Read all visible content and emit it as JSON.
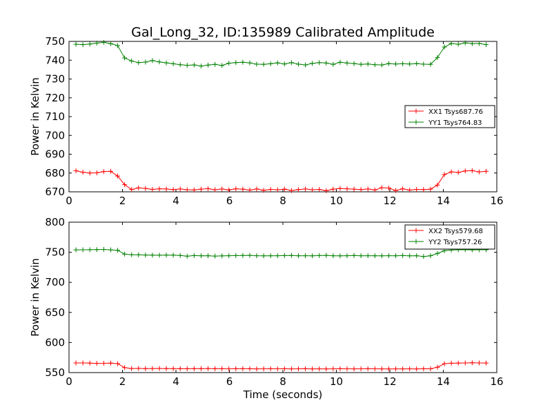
{
  "title": "Gal_Long_32, ID:135989 Calibrated Amplitude",
  "colors": {
    "red": "#ff0000",
    "green": "#008000"
  },
  "chart_data": [
    {
      "type": "line",
      "title": "Gal_Long_32, ID:135989 Calibrated Amplitude",
      "xlabel": "",
      "ylabel": "Power in Kelvin",
      "xlim": [
        0,
        16
      ],
      "ylim": [
        670,
        750
      ],
      "xticks": [
        "0",
        "2",
        "4",
        "6",
        "8",
        "10",
        "12",
        "14",
        "16"
      ],
      "yticks": [
        "670",
        "680",
        "690",
        "700",
        "710",
        "720",
        "730",
        "740",
        "750"
      ],
      "legend_position": "center-right",
      "x": [
        0.26,
        0.52,
        0.78,
        1.04,
        1.3,
        1.56,
        1.82,
        2.08,
        2.34,
        2.6,
        2.86,
        3.12,
        3.38,
        3.64,
        3.9,
        4.16,
        4.42,
        4.68,
        4.94,
        5.2,
        5.46,
        5.72,
        5.98,
        6.24,
        6.5,
        6.76,
        7.02,
        7.28,
        7.54,
        7.8,
        8.06,
        8.32,
        8.58,
        8.84,
        9.1,
        9.36,
        9.62,
        9.88,
        10.14,
        10.4,
        10.66,
        10.92,
        11.18,
        11.44,
        11.7,
        11.96,
        12.22,
        12.48,
        12.74,
        13.0,
        13.26,
        13.52,
        13.78,
        14.04,
        14.3,
        14.56,
        14.82,
        15.08,
        15.34,
        15.6
      ],
      "series": [
        {
          "name": "XX1 Tsys687.76",
          "color": "#ff0000",
          "values": [
            681.2,
            680.4,
            680.0,
            680.1,
            680.8,
            680.9,
            678.4,
            673.8,
            671.2,
            672.1,
            671.8,
            671.3,
            671.6,
            671.5,
            671.2,
            671.5,
            671.1,
            671.0,
            671.4,
            671.7,
            671.1,
            671.5,
            671.0,
            671.6,
            671.4,
            670.9,
            671.5,
            670.8,
            671.3,
            671.1,
            671.4,
            670.7,
            671.2,
            671.5,
            671.1,
            671.3,
            670.6,
            671.4,
            671.8,
            671.6,
            671.4,
            671.2,
            671.5,
            671.0,
            672.2,
            672.0,
            670.7,
            671.6,
            670.9,
            671.3,
            671.2,
            671.4,
            673.6,
            679.2,
            680.6,
            680.3,
            681.1,
            681.3,
            680.6,
            680.9
          ]
        },
        {
          "name": "YY1 Tsys764.83",
          "color": "#008000",
          "values": [
            748.5,
            748.3,
            748.6,
            749.1,
            749.5,
            748.8,
            747.8,
            741.2,
            739.6,
            738.7,
            739.0,
            739.8,
            739.1,
            738.6,
            738.1,
            737.6,
            737.3,
            737.5,
            736.9,
            737.4,
            737.8,
            737.2,
            738.4,
            738.7,
            738.9,
            738.6,
            737.9,
            737.8,
            738.1,
            738.6,
            738.0,
            738.7,
            737.9,
            737.5,
            738.3,
            738.7,
            738.5,
            737.8,
            738.9,
            738.5,
            738.2,
            737.8,
            738.0,
            737.6,
            737.5,
            738.2,
            738.0,
            738.1,
            738.0,
            738.2,
            737.9,
            737.8,
            741.4,
            747.0,
            748.9,
            748.5,
            749.2,
            748.8,
            748.9,
            748.3
          ]
        }
      ]
    },
    {
      "type": "line",
      "title": "",
      "xlabel": "Time (seconds)",
      "ylabel": "Power in Kelvin",
      "xlim": [
        0,
        16
      ],
      "ylim": [
        550,
        800
      ],
      "xticks": [
        "0",
        "2",
        "4",
        "6",
        "8",
        "10",
        "12",
        "14",
        "16"
      ],
      "yticks": [
        "550",
        "600",
        "650",
        "700",
        "750",
        "800"
      ],
      "legend_position": "top-right",
      "x": [
        0.26,
        0.52,
        0.78,
        1.04,
        1.3,
        1.56,
        1.82,
        2.08,
        2.34,
        2.6,
        2.86,
        3.12,
        3.38,
        3.64,
        3.9,
        4.16,
        4.42,
        4.68,
        4.94,
        5.2,
        5.46,
        5.72,
        5.98,
        6.24,
        6.5,
        6.76,
        7.02,
        7.28,
        7.54,
        7.8,
        8.06,
        8.32,
        8.58,
        8.84,
        9.1,
        9.36,
        9.62,
        9.88,
        10.14,
        10.4,
        10.66,
        10.92,
        11.18,
        11.44,
        11.7,
        11.96,
        12.22,
        12.48,
        12.74,
        13.0,
        13.26,
        13.52,
        13.78,
        14.04,
        14.3,
        14.56,
        14.82,
        15.08,
        15.34,
        15.6
      ],
      "series": [
        {
          "name": "XX2 Tsys579.68",
          "color": "#ff0000",
          "values": [
            566.0,
            566.0,
            565.8,
            565.4,
            565.5,
            565.8,
            564.9,
            558.2,
            556.8,
            557.0,
            556.6,
            556.8,
            556.9,
            556.7,
            556.6,
            556.5,
            556.4,
            556.5,
            556.6,
            556.7,
            556.5,
            556.4,
            556.3,
            556.4,
            556.5,
            556.4,
            556.2,
            556.3,
            556.4,
            556.3,
            556.4,
            556.2,
            556.3,
            556.4,
            556.2,
            556.3,
            556.1,
            556.3,
            556.4,
            556.3,
            556.2,
            556.3,
            556.4,
            556.3,
            556.2,
            556.1,
            556.2,
            556.2,
            556.3,
            556.1,
            556.4,
            556.3,
            558.9,
            564.8,
            565.6,
            565.7,
            566.1,
            566.4,
            566.0,
            565.9
          ]
        },
        {
          "name": "YY2 Tsys757.26",
          "color": "#008000",
          "values": [
            754.0,
            754.1,
            754.3,
            754.4,
            754.7,
            754.0,
            753.3,
            746.9,
            745.9,
            745.8,
            745.4,
            745.3,
            745.1,
            745.2,
            745.3,
            744.6,
            743.5,
            744.5,
            744.2,
            744.3,
            743.6,
            744.0,
            744.3,
            744.5,
            744.6,
            744.8,
            744.3,
            744.1,
            744.2,
            744.3,
            744.5,
            744.6,
            744.2,
            744.3,
            744.1,
            744.5,
            744.8,
            744.2,
            744.1,
            744.3,
            744.6,
            744.2,
            744.3,
            744.2,
            744.1,
            744.3,
            744.2,
            744.5,
            744.1,
            744.3,
            743.0,
            744.2,
            748.1,
            752.5,
            753.7,
            754.1,
            754.3,
            754.0,
            754.1,
            754.2
          ]
        }
      ]
    }
  ]
}
